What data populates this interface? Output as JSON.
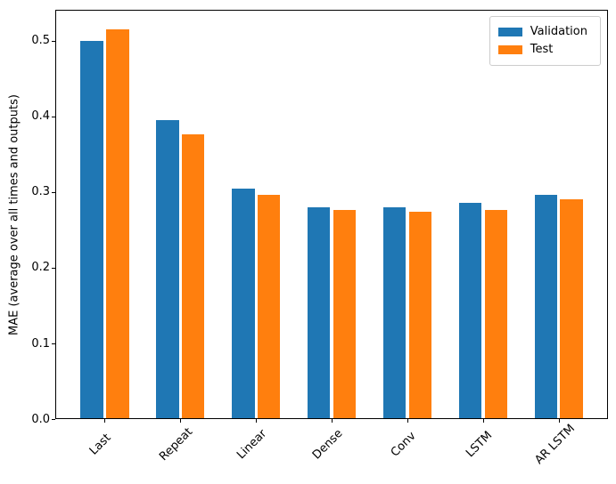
{
  "figure": {
    "background": "#ffffff",
    "axis_color": "#000000"
  },
  "chart_data": {
    "type": "bar",
    "title": "",
    "xlabel": "",
    "ylabel": "MAE (average over all times and outputs)",
    "categories": [
      "Last",
      "Repeat",
      "Linear",
      "Dense",
      "Conv",
      "LSTM",
      "AR LSTM"
    ],
    "series": [
      {
        "name": "Validation",
        "color": "#1f77b4",
        "values": [
          0.5,
          0.395,
          0.305,
          0.28,
          0.28,
          0.286,
          0.297
        ]
      },
      {
        "name": "Test",
        "color": "#ff7f0e",
        "values": [
          0.515,
          0.376,
          0.297,
          0.276,
          0.274,
          0.276,
          0.291
        ]
      }
    ],
    "ylim": [
      0,
      0.541
    ],
    "yticks": [
      0.0,
      0.1,
      0.2,
      0.3,
      0.4,
      0.5
    ],
    "ytick_labels": [
      "0.0",
      "0.1",
      "0.2",
      "0.3",
      "0.4",
      "0.5"
    ],
    "bar_width": 0.3,
    "bar_offset": 0.17,
    "x_rotation": 45,
    "grid": false,
    "legend": {
      "position": "upper right",
      "labels": [
        "Validation",
        "Test"
      ]
    }
  }
}
